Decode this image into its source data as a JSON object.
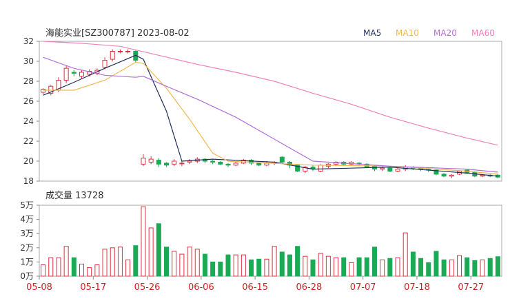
{
  "title": "海能实业[SZ300787] 2023-08-02",
  "legend": [
    {
      "name": "MA5",
      "color": "#1f2d5a"
    },
    {
      "name": "MA10",
      "color": "#f0b850"
    },
    {
      "name": "MA20",
      "color": "#b070d8"
    },
    {
      "name": "MA60",
      "color": "#f080b8"
    }
  ],
  "volume_label": "成交量 13728",
  "colors": {
    "up": "#e03040",
    "down": "#1aaa55"
  },
  "chart_data": [
    {
      "type": "candlestick",
      "title": "海能实业[SZ300787] 2023-08-02",
      "ylim": [
        18,
        32
      ],
      "yticks": [
        18,
        20,
        22,
        24,
        26,
        28,
        30,
        32
      ],
      "xticks": [
        "05-08",
        "05-17",
        "05-26",
        "06-06",
        "06-15",
        "06-28",
        "07-07",
        "07-18",
        "07-27"
      ],
      "xtick_index": [
        0,
        7,
        14,
        21,
        28,
        35,
        42,
        49,
        56
      ],
      "candles": [
        [
          26.9,
          27.2,
          26.7,
          27.3
        ],
        [
          26.8,
          27.5,
          26.6,
          27.6
        ],
        [
          27.1,
          28.1,
          26.9,
          28.4
        ],
        [
          28.1,
          29.3,
          27.8,
          29.6
        ],
        [
          28.9,
          28.8,
          28.5,
          29.1
        ],
        [
          28.5,
          28.9,
          28.3,
          29.1
        ],
        [
          28.7,
          29.0,
          28.5,
          29.2
        ],
        [
          28.8,
          29.1,
          28.6,
          29.3
        ],
        [
          29.4,
          30.1,
          29.2,
          30.4
        ],
        [
          30.2,
          31.0,
          30.0,
          31.2
        ],
        [
          31.0,
          31.0,
          30.8,
          31.2
        ],
        [
          31.0,
          31.0,
          30.8,
          31.2
        ],
        [
          31.0,
          30.1,
          29.9,
          31.1
        ],
        [
          19.7,
          20.3,
          19.5,
          20.7
        ],
        [
          19.9,
          20.2,
          19.7,
          20.5
        ],
        [
          20.1,
          19.7,
          19.4,
          20.3
        ],
        [
          19.8,
          19.6,
          19.4,
          19.9
        ],
        [
          19.7,
          20.0,
          19.5,
          20.2
        ],
        [
          19.8,
          19.8,
          19.5,
          20.0
        ],
        [
          19.9,
          20.0,
          19.7,
          20.2
        ],
        [
          20.0,
          20.2,
          19.8,
          20.4
        ],
        [
          20.2,
          20.0,
          19.8,
          20.3
        ],
        [
          20.0,
          19.9,
          19.7,
          20.1
        ],
        [
          19.9,
          19.7,
          19.6,
          20.0
        ],
        [
          19.7,
          19.6,
          19.4,
          19.8
        ],
        [
          19.6,
          19.8,
          19.5,
          20.0
        ],
        [
          19.8,
          20.1,
          19.7,
          20.2
        ],
        [
          20.1,
          19.8,
          19.6,
          20.2
        ],
        [
          19.8,
          19.6,
          19.5,
          19.9
        ],
        [
          19.6,
          19.8,
          19.5,
          20.0
        ],
        [
          19.8,
          19.9,
          19.6,
          20.0
        ],
        [
          20.4,
          19.9,
          19.8,
          20.5
        ],
        [
          19.9,
          19.6,
          19.3,
          20.0
        ],
        [
          19.6,
          19.0,
          18.9,
          19.7
        ],
        [
          19.0,
          19.4,
          18.8,
          19.5
        ],
        [
          19.4,
          19.2,
          19.0,
          19.6
        ],
        [
          19.0,
          19.6,
          18.9,
          19.7
        ],
        [
          19.5,
          19.7,
          19.3,
          19.8
        ],
        [
          19.7,
          19.9,
          19.5,
          20.0
        ],
        [
          19.9,
          19.7,
          19.6,
          20.0
        ],
        [
          19.7,
          19.9,
          19.6,
          20.0
        ],
        [
          19.8,
          19.7,
          19.5,
          19.9
        ],
        [
          19.7,
          19.4,
          19.3,
          19.8
        ],
        [
          19.5,
          19.2,
          19.0,
          19.6
        ],
        [
          19.2,
          19.3,
          19.0,
          19.5
        ],
        [
          19.3,
          19.0,
          18.9,
          19.4
        ],
        [
          19.0,
          19.2,
          18.9,
          19.3
        ],
        [
          19.2,
          19.4,
          19.0,
          19.6
        ],
        [
          19.4,
          19.3,
          19.1,
          19.5
        ],
        [
          19.3,
          19.2,
          19.0,
          19.4
        ],
        [
          19.2,
          19.1,
          18.9,
          19.3
        ],
        [
          19.1,
          18.7,
          18.6,
          19.2
        ],
        [
          18.7,
          18.5,
          18.4,
          18.8
        ],
        [
          18.5,
          18.6,
          18.3,
          18.7
        ],
        [
          18.7,
          19.0,
          18.6,
          19.1
        ],
        [
          19.1,
          18.8,
          18.7,
          19.2
        ],
        [
          18.9,
          18.5,
          18.4,
          19.0
        ],
        [
          18.5,
          18.6,
          18.4,
          18.7
        ],
        [
          18.6,
          18.5,
          18.4,
          18.7
        ],
        [
          18.6,
          18.4,
          18.3,
          18.7
        ]
      ],
      "ma": {
        "MA5": [
          [
            0,
            26.6
          ],
          [
            4,
            27.9
          ],
          [
            8,
            29.3
          ],
          [
            12,
            30.6
          ],
          [
            13,
            30.2
          ],
          [
            16,
            25.0
          ],
          [
            18,
            20.0
          ],
          [
            22,
            20.2
          ],
          [
            30,
            19.9
          ],
          [
            35,
            19.2
          ],
          [
            45,
            19.4
          ],
          [
            55,
            18.8
          ],
          [
            59,
            18.5
          ]
        ],
        "MA10": [
          [
            0,
            27.1
          ],
          [
            4,
            27.1
          ],
          [
            8,
            28.1
          ],
          [
            12,
            29.9
          ],
          [
            13,
            29.8
          ],
          [
            16,
            27.3
          ],
          [
            19,
            24.2
          ],
          [
            22,
            20.8
          ],
          [
            24,
            20.0
          ],
          [
            35,
            19.6
          ],
          [
            45,
            19.5
          ],
          [
            55,
            19.0
          ],
          [
            59,
            18.7
          ]
        ],
        "MA20": [
          [
            0,
            30.4
          ],
          [
            4,
            29.3
          ],
          [
            8,
            28.6
          ],
          [
            12,
            28.4
          ],
          [
            13,
            28.5
          ],
          [
            16,
            27.5
          ],
          [
            20,
            26.2
          ],
          [
            25,
            24.4
          ],
          [
            30,
            22.2
          ],
          [
            35,
            20.0
          ],
          [
            45,
            19.5
          ],
          [
            55,
            19.2
          ],
          [
            59,
            18.9
          ]
        ],
        "MA60": [
          [
            0,
            32.0
          ],
          [
            5,
            31.8
          ],
          [
            10,
            31.5
          ],
          [
            15,
            30.6
          ],
          [
            20,
            29.7
          ],
          [
            25,
            28.9
          ],
          [
            30,
            28.0
          ],
          [
            35,
            26.8
          ],
          [
            40,
            25.7
          ],
          [
            45,
            24.4
          ],
          [
            50,
            23.3
          ],
          [
            55,
            22.3
          ],
          [
            59,
            21.6
          ]
        ]
      }
    },
    {
      "type": "bar",
      "title": "成交量 13728",
      "ylim": [
        0,
        50000
      ],
      "yticks": [
        "0万",
        "1万",
        "2万",
        "3万",
        "4万",
        "5万"
      ],
      "values": [
        8000,
        13000,
        13000,
        21000,
        13000,
        8500,
        6000,
        8000,
        19000,
        20000,
        20500,
        11500,
        21500,
        49000,
        34000,
        37000,
        20500,
        17500,
        15500,
        20500,
        19000,
        15500,
        10000,
        10000,
        15000,
        15000,
        15000,
        11500,
        12000,
        12000,
        21000,
        17000,
        15000,
        21000,
        14000,
        11500,
        16000,
        14000,
        13000,
        13000,
        9500,
        13000,
        13000,
        20500,
        11500,
        12500,
        13000,
        30500,
        17000,
        12500,
        9500,
        17500,
        11500,
        11500,
        14500,
        13000,
        11000,
        11500,
        12500,
        13728
      ]
    }
  ]
}
